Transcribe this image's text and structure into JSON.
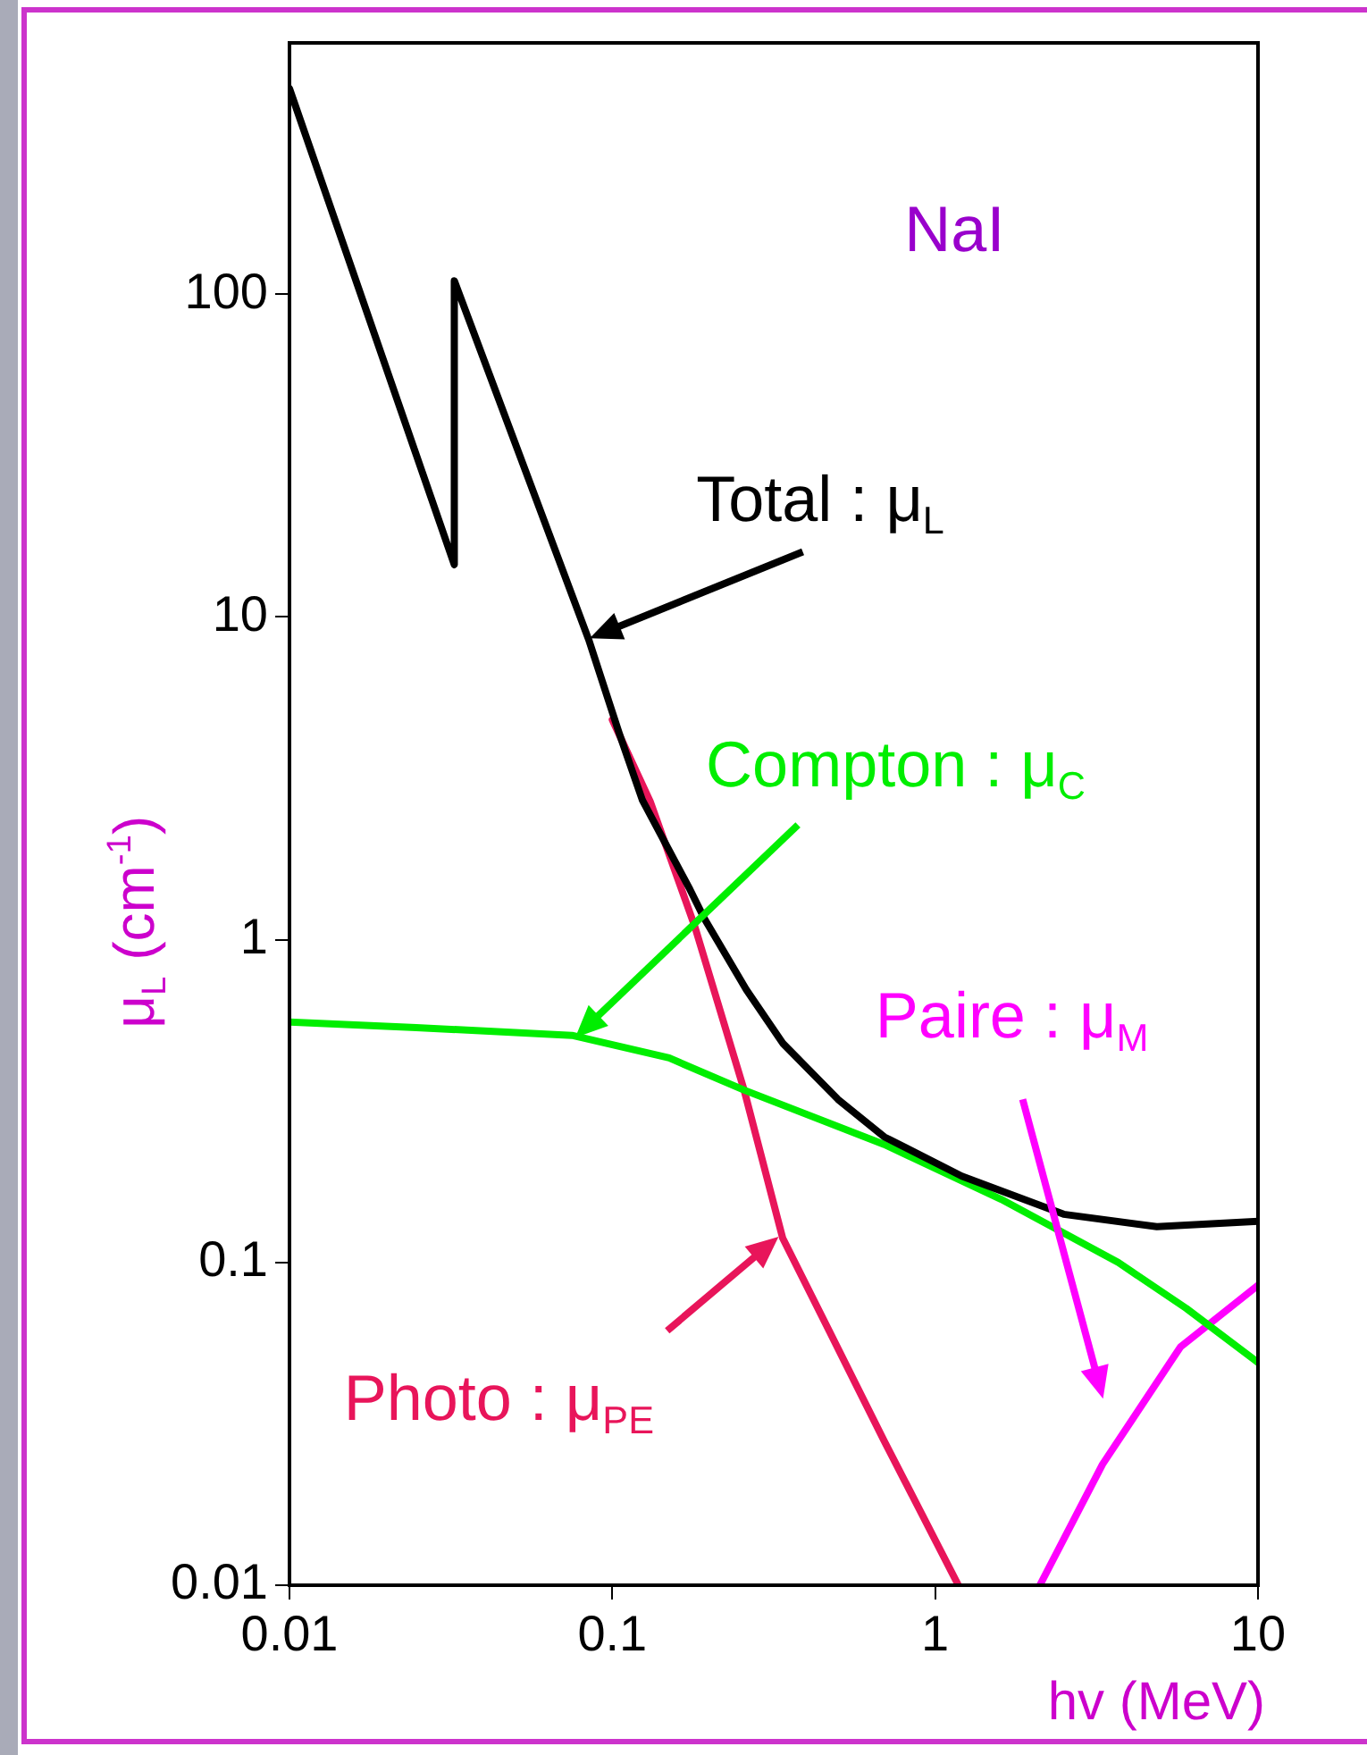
{
  "chart_data": {
    "type": "line",
    "xlabel": "hv (MeV)",
    "ylabel": "μ$_{L}$ (cm$^{-1}$)",
    "annotations": [
      "NaI"
    ],
    "log": "xy",
    "xlim": [
      0.01,
      10
    ],
    "ylim": [
      0.01,
      600
    ],
    "xticks": [
      0.01,
      0.1,
      1,
      10
    ],
    "yticks": [
      0.01,
      0.1,
      1,
      10,
      100
    ],
    "grid": false,
    "marker": "none",
    "line_style": "solid",
    "series": [
      {
        "name": "Total : μ$_{L}$",
        "color": "#000000",
        "x": [
          0.01,
          0.0324,
          0.0324,
          0.0845,
          0.105,
          0.124,
          0.174,
          0.193,
          0.26,
          0.337,
          0.5,
          0.695,
          1.21,
          2.5,
          4.86,
          10
        ],
        "values": [
          433,
          14.5,
          110,
          8.5,
          4.36,
          2.7,
          1.43,
          1.16,
          0.7,
          0.478,
          0.32,
          0.245,
          0.185,
          0.141,
          0.129,
          0.134
        ]
      },
      {
        "name": "Compton : μ$_{C}$",
        "color": "#00ee00",
        "x": [
          0.01,
          0.0247,
          0.075,
          0.15,
          0.256,
          0.695,
          1.6,
          3.69,
          6,
          10
        ],
        "values": [
          0.556,
          0.534,
          0.505,
          0.43,
          0.342,
          0.232,
          0.157,
          0.1,
          0.072,
          0.049
        ]
      },
      {
        "name": "Photo : μ$_{PE}$",
        "color": "#e8155a",
        "x": [
          0.1,
          0.131,
          0.18,
          0.256,
          0.337,
          0.471,
          0.695,
          1.18
        ],
        "values": [
          4.8,
          2.68,
          1.1,
          0.342,
          0.119,
          0.061,
          0.028,
          0.01
        ]
      },
      {
        "name": "Paire : μ$_{M}$",
        "color": "#ff00ff",
        "x": [
          2.11,
          3.3,
          5.75,
          10
        ],
        "values": [
          0.01,
          0.0237,
          0.0547,
          0.085
        ]
      }
    ]
  }
}
